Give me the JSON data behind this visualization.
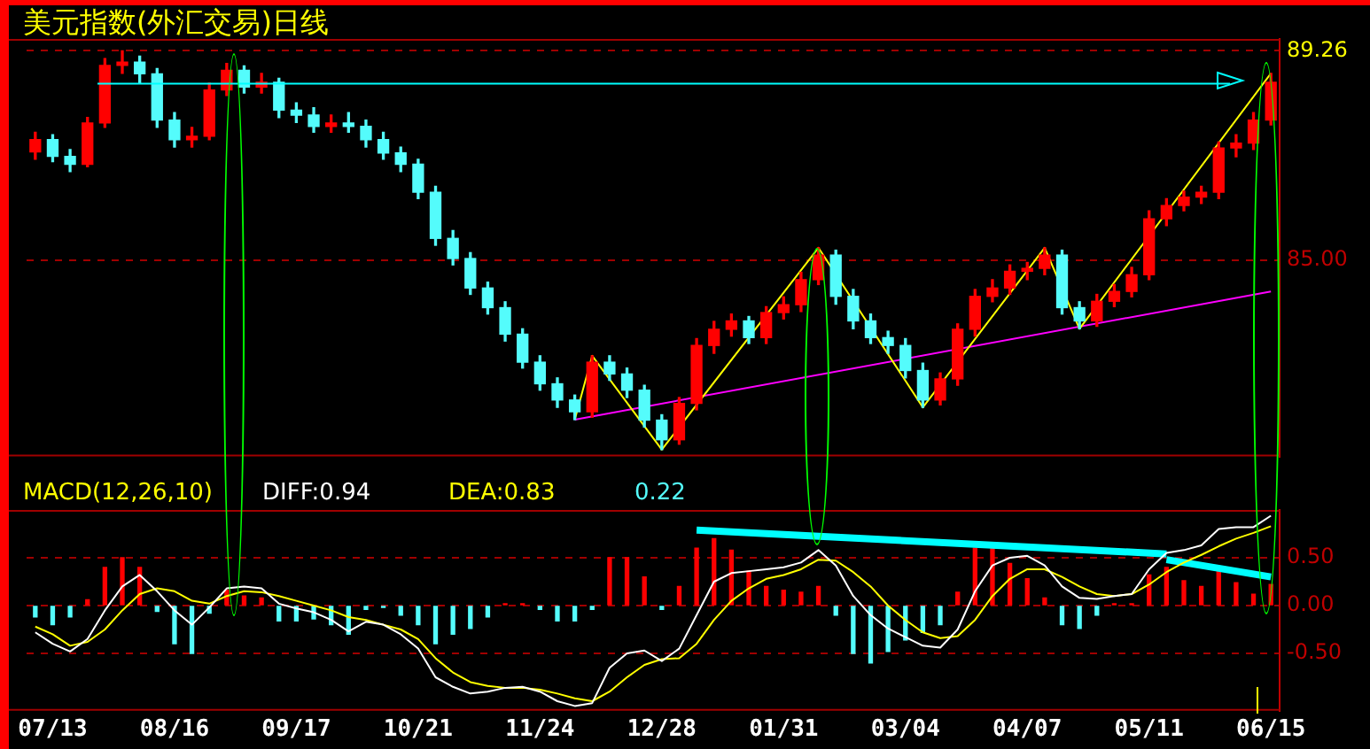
{
  "chart_data": [
    {
      "type": "candlestick",
      "title": "美元指数(外汇交易)日线",
      "categories": [
        null,
        null,
        null,
        null,
        null,
        null,
        null,
        null,
        null,
        null,
        null,
        null,
        null,
        null,
        null,
        null,
        null,
        null,
        null,
        null,
        null,
        null,
        null,
        null,
        null,
        null,
        null,
        null,
        null,
        null,
        null,
        null,
        null,
        null,
        null,
        null,
        null,
        null,
        null,
        null,
        null,
        null,
        null,
        null,
        null,
        null,
        null,
        null,
        null,
        null,
        null,
        null,
        null,
        null,
        null,
        null,
        null,
        null,
        null,
        null,
        null,
        null,
        null,
        null,
        null,
        null,
        null,
        null,
        null,
        null,
        null,
        null
      ],
      "ohlc": [
        [
          87.2,
          87.6,
          87.05,
          87.45
        ],
        [
          87.45,
          87.55,
          87.0,
          87.11
        ],
        [
          87.11,
          87.25,
          86.8,
          86.95
        ],
        [
          86.95,
          87.9,
          86.9,
          87.79
        ],
        [
          87.79,
          89.1,
          87.7,
          88.96
        ],
        [
          88.96,
          89.26,
          88.8,
          89.03
        ],
        [
          89.03,
          89.15,
          88.6,
          88.79
        ],
        [
          88.79,
          88.9,
          87.7,
          87.85
        ],
        [
          87.85,
          88.0,
          87.3,
          87.45
        ],
        [
          87.45,
          87.7,
          87.3,
          87.52
        ],
        [
          87.52,
          88.6,
          87.45,
          88.46
        ],
        [
          88.46,
          89.0,
          88.35,
          88.86
        ],
        [
          88.86,
          88.95,
          88.4,
          88.52
        ],
        [
          88.52,
          88.8,
          88.4,
          88.62
        ],
        [
          88.62,
          88.7,
          87.9,
          88.05
        ],
        [
          88.05,
          88.2,
          87.8,
          87.95
        ],
        [
          87.95,
          88.1,
          87.6,
          87.72
        ],
        [
          87.72,
          87.95,
          87.6,
          87.79
        ],
        [
          87.79,
          88.0,
          87.6,
          87.72
        ],
        [
          87.72,
          87.85,
          87.3,
          87.45
        ],
        [
          87.45,
          87.6,
          87.05,
          87.18
        ],
        [
          87.18,
          87.3,
          86.8,
          86.95
        ],
        [
          86.95,
          87.05,
          86.25,
          86.38
        ],
        [
          86.38,
          86.5,
          85.3,
          85.44
        ],
        [
          85.44,
          85.6,
          84.9,
          85.03
        ],
        [
          85.03,
          85.15,
          84.3,
          84.43
        ],
        [
          84.43,
          84.55,
          83.9,
          84.03
        ],
        [
          84.03,
          84.15,
          83.35,
          83.49
        ],
        [
          83.49,
          83.6,
          82.8,
          82.92
        ],
        [
          82.92,
          83.05,
          82.35,
          82.48
        ],
        [
          82.48,
          82.6,
          82.0,
          82.15
        ],
        [
          82.15,
          82.25,
          81.75,
          81.91
        ],
        [
          81.91,
          83.05,
          81.8,
          82.92
        ],
        [
          82.92,
          83.05,
          82.55,
          82.68
        ],
        [
          82.68,
          82.8,
          82.2,
          82.35
        ],
        [
          82.35,
          82.45,
          81.6,
          81.74
        ],
        [
          81.74,
          81.85,
          81.14,
          81.34
        ],
        [
          81.34,
          82.2,
          81.25,
          82.08
        ],
        [
          82.08,
          83.4,
          81.95,
          83.26
        ],
        [
          83.26,
          83.75,
          83.1,
          83.59
        ],
        [
          83.59,
          83.9,
          83.45,
          83.76
        ],
        [
          83.76,
          83.85,
          83.3,
          83.42
        ],
        [
          83.42,
          84.05,
          83.3,
          83.93
        ],
        [
          83.93,
          84.25,
          83.8,
          84.09
        ],
        [
          84.09,
          84.75,
          83.95,
          84.6
        ],
        [
          84.6,
          85.25,
          84.5,
          85.1
        ],
        [
          85.1,
          85.2,
          84.1,
          84.26
        ],
        [
          84.26,
          84.4,
          83.6,
          83.76
        ],
        [
          83.76,
          83.9,
          83.3,
          83.42
        ],
        [
          83.42,
          83.55,
          83.1,
          83.26
        ],
        [
          83.26,
          83.4,
          82.6,
          82.75
        ],
        [
          82.75,
          82.9,
          82.0,
          82.15
        ],
        [
          82.15,
          82.7,
          82.05,
          82.58
        ],
        [
          82.58,
          83.7,
          82.45,
          83.59
        ],
        [
          83.59,
          84.4,
          83.45,
          84.26
        ],
        [
          84.26,
          84.6,
          84.15,
          84.43
        ],
        [
          84.43,
          84.9,
          84.3,
          84.77
        ],
        [
          84.77,
          84.95,
          84.6,
          84.83
        ],
        [
          84.83,
          85.25,
          84.7,
          85.1
        ],
        [
          85.1,
          85.2,
          83.9,
          84.03
        ],
        [
          84.03,
          84.15,
          83.6,
          83.76
        ],
        [
          83.76,
          84.3,
          83.65,
          84.16
        ],
        [
          84.16,
          84.5,
          84.05,
          84.36
        ],
        [
          84.36,
          84.85,
          84.25,
          84.7
        ],
        [
          84.7,
          86.0,
          84.6,
          85.84
        ],
        [
          85.84,
          86.25,
          85.7,
          86.11
        ],
        [
          86.11,
          86.4,
          86.0,
          86.28
        ],
        [
          86.28,
          86.5,
          86.15,
          86.38
        ],
        [
          86.38,
          87.4,
          86.25,
          87.28
        ],
        [
          87.28,
          87.55,
          87.1,
          87.38
        ],
        [
          87.38,
          88.0,
          87.25,
          87.85
        ],
        [
          87.85,
          88.8,
          87.75,
          88.62
        ]
      ],
      "colors": [
        "#ff0000",
        "#54fcfc",
        "#54fcfc",
        "#ff0000",
        "#ff0000",
        "#ff0000",
        "#54fcfc",
        "#54fcfc",
        "#54fcfc",
        "#ff0000",
        "#ff0000",
        "#ff0000",
        "#54fcfc",
        "#ff0000",
        "#54fcfc",
        "#54fcfc",
        "#54fcfc",
        "#ff0000",
        "#54fcfc",
        "#54fcfc",
        "#54fcfc",
        "#54fcfc",
        "#54fcfc",
        "#54fcfc",
        "#54fcfc",
        "#54fcfc",
        "#54fcfc",
        "#54fcfc",
        "#54fcfc",
        "#54fcfc",
        "#54fcfc",
        "#54fcfc",
        "#ff0000",
        "#54fcfc",
        "#54fcfc",
        "#54fcfc",
        "#54fcfc",
        "#ff0000",
        "#ff0000",
        "#ff0000",
        "#ff0000",
        "#54fcfc",
        "#ff0000",
        "#ff0000",
        "#ff0000",
        "#ff0000",
        "#54fcfc",
        "#54fcfc",
        "#54fcfc",
        "#54fcfc",
        "#54fcfc",
        "#54fcfc",
        "#ff0000",
        "#ff0000",
        "#ff0000",
        "#ff0000",
        "#ff0000",
        "#ff0000",
        "#ff0000",
        "#54fcfc",
        "#54fcfc",
        "#ff0000",
        "#ff0000",
        "#ff0000",
        "#ff0000",
        "#ff0000",
        "#ff0000",
        "#ff0000",
        "#ff0000",
        "#ff0000",
        "#ff0000",
        "#ff0000"
      ],
      "series": [
        {
          "type": "line",
          "color": "#ffff00",
          "values": [
            null,
            null,
            null,
            null,
            null,
            null,
            null,
            null,
            null,
            null,
            null,
            null,
            null,
            null,
            null,
            null,
            null,
            null,
            null,
            null,
            null,
            null,
            null,
            null,
            null,
            null,
            null,
            null,
            null,
            null,
            null,
            81.75,
            83.05,
            null,
            null,
            null,
            81.14,
            null,
            null,
            null,
            null,
            null,
            null,
            null,
            null,
            85.25,
            null,
            null,
            null,
            null,
            null,
            82.0,
            null,
            null,
            null,
            null,
            null,
            null,
            85.25,
            null,
            83.6,
            null,
            null,
            null,
            null,
            null,
            null,
            null,
            null,
            null,
            null,
            88.8
          ]
        },
        {
          "type": "line",
          "color": "#ff00ff",
          "values": [
            null,
            null,
            null,
            null,
            null,
            null,
            null,
            null,
            null,
            null,
            null,
            null,
            null,
            null,
            null,
            null,
            null,
            null,
            null,
            null,
            null,
            null,
            null,
            null,
            null,
            null,
            null,
            null,
            null,
            null,
            null,
            81.75,
            null,
            null,
            null,
            null,
            null,
            null,
            null,
            null,
            null,
            null,
            null,
            null,
            null,
            null,
            null,
            null,
            null,
            null,
            null,
            null,
            null,
            null,
            null,
            null,
            null,
            null,
            null,
            null,
            null,
            null,
            null,
            null,
            null,
            null,
            null,
            null,
            null,
            null,
            null,
            84.36
          ]
        }
      ],
      "ref_lines": [
        {
          "axis": "y",
          "value": 88.59,
          "color": "#00ffff"
        }
      ],
      "ylim": [
        81.0,
        89.5
      ],
      "yticks": [
        {
          "value": 85,
          "label": "85.00"
        },
        {
          "value": 89.26,
          "label": "89.26"
        }
      ],
      "grid": "y",
      "tick_labels": "y",
      "marker": "none"
    },
    {
      "type": "bar",
      "title": "MACD(12,26,10)",
      "categories": [
        null,
        "07/13",
        null,
        null,
        null,
        null,
        null,
        null,
        "08/16",
        null,
        null,
        null,
        null,
        null,
        null,
        "09/17",
        null,
        null,
        null,
        null,
        null,
        null,
        "10/21",
        null,
        null,
        null,
        null,
        null,
        null,
        "11/24",
        null,
        null,
        null,
        null,
        null,
        null,
        "12/28",
        null,
        null,
        null,
        null,
        null,
        null,
        "01/31",
        null,
        null,
        null,
        null,
        null,
        null,
        "03/04",
        null,
        null,
        null,
        null,
        null,
        null,
        "04/07",
        null,
        null,
        null,
        null,
        null,
        null,
        "05/11",
        null,
        null,
        null,
        null,
        null,
        null,
        "06/15"
      ],
      "series": [
        {
          "type": "line",
          "name": "DIFF:0.94",
          "color": "#ffffff",
          "values": [
            -0.28,
            -0.4,
            -0.48,
            -0.35,
            -0.05,
            0.2,
            0.32,
            0.15,
            -0.05,
            -0.2,
            -0.02,
            0.18,
            0.2,
            0.18,
            0.02,
            -0.03,
            -0.07,
            -0.15,
            -0.27,
            -0.17,
            -0.2,
            -0.3,
            -0.45,
            -0.75,
            -0.85,
            -0.92,
            -0.9,
            -0.86,
            -0.85,
            -0.9,
            -1.0,
            -1.05,
            -1.02,
            -0.65,
            -0.5,
            -0.47,
            -0.58,
            -0.45,
            -0.1,
            0.25,
            0.34,
            0.36,
            0.38,
            0.4,
            0.45,
            0.58,
            0.42,
            0.1,
            -0.1,
            -0.24,
            -0.33,
            -0.42,
            -0.44,
            -0.25,
            0.15,
            0.42,
            0.5,
            0.52,
            0.42,
            0.2,
            0.08,
            0.07,
            0.1,
            0.12,
            0.38,
            0.55,
            0.58,
            0.63,
            0.8,
            0.82,
            0.82,
            0.94
          ]
        },
        {
          "type": "line",
          "name": "DEA:0.83",
          "color": "#ffff00",
          "values": [
            -0.22,
            -0.3,
            -0.42,
            -0.38,
            -0.25,
            -0.05,
            0.12,
            0.18,
            0.15,
            0.05,
            0.02,
            0.1,
            0.15,
            0.14,
            0.1,
            0.05,
            0.0,
            -0.05,
            -0.12,
            -0.15,
            -0.2,
            -0.25,
            -0.35,
            -0.55,
            -0.7,
            -0.8,
            -0.84,
            -0.86,
            -0.86,
            -0.88,
            -0.92,
            -0.97,
            -1.0,
            -0.9,
            -0.75,
            -0.62,
            -0.56,
            -0.55,
            -0.4,
            -0.15,
            0.05,
            0.18,
            0.28,
            0.32,
            0.38,
            0.48,
            0.47,
            0.35,
            0.2,
            0.0,
            -0.15,
            -0.28,
            -0.34,
            -0.32,
            -0.15,
            0.1,
            0.28,
            0.38,
            0.38,
            0.3,
            0.2,
            0.12,
            0.1,
            0.12,
            0.22,
            0.35,
            0.45,
            0.53,
            0.62,
            0.7,
            0.76,
            0.83
          ]
        },
        {
          "type": "bar",
          "name": "0.22",
          "color": "#54fcfc",
          "values": [
            -0.12,
            -0.2,
            -0.12,
            0.06,
            0.4,
            0.5,
            0.4,
            -0.06,
            -0.4,
            -0.5,
            -0.08,
            0.16,
            0.1,
            0.08,
            -0.16,
            -0.16,
            -0.14,
            -0.2,
            -0.3,
            -0.04,
            -0.02,
            -0.1,
            -0.2,
            -0.4,
            -0.3,
            -0.24,
            -0.12,
            0.02,
            0.02,
            -0.04,
            -0.16,
            -0.16,
            -0.04,
            0.5,
            0.5,
            0.3,
            -0.04,
            0.2,
            0.6,
            0.7,
            0.58,
            0.36,
            0.2,
            0.16,
            0.14,
            0.2,
            -0.1,
            -0.5,
            -0.6,
            -0.48,
            -0.36,
            -0.28,
            -0.2,
            0.14,
            0.6,
            0.64,
            0.44,
            0.28,
            0.08,
            -0.2,
            -0.24,
            -0.1,
            0.02,
            0.02,
            0.32,
            0.4,
            0.26,
            0.2,
            0.36,
            0.24,
            0.12,
            0.22
          ],
          "colors": [
            "#54fcfc",
            "#54fcfc",
            "#54fcfc",
            "#ff0000",
            "#ff0000",
            "#ff0000",
            "#ff0000",
            "#54fcfc",
            "#54fcfc",
            "#54fcfc",
            "#54fcfc",
            "#ff0000",
            "#ff0000",
            "#ff0000",
            "#54fcfc",
            "#54fcfc",
            "#54fcfc",
            "#54fcfc",
            "#54fcfc",
            "#54fcfc",
            "#54fcfc",
            "#54fcfc",
            "#54fcfc",
            "#54fcfc",
            "#54fcfc",
            "#54fcfc",
            "#54fcfc",
            "#ff0000",
            "#ff0000",
            "#54fcfc",
            "#54fcfc",
            "#54fcfc",
            "#54fcfc",
            "#ff0000",
            "#ff0000",
            "#ff0000",
            "#54fcfc",
            "#ff0000",
            "#ff0000",
            "#ff0000",
            "#ff0000",
            "#ff0000",
            "#ff0000",
            "#ff0000",
            "#ff0000",
            "#ff0000",
            "#54fcfc",
            "#54fcfc",
            "#54fcfc",
            "#54fcfc",
            "#54fcfc",
            "#54fcfc",
            "#54fcfc",
            "#ff0000",
            "#ff0000",
            "#ff0000",
            "#ff0000",
            "#ff0000",
            "#ff0000",
            "#54fcfc",
            "#54fcfc",
            "#54fcfc",
            "#ff0000",
            "#ff0000",
            "#ff0000",
            "#ff0000",
            "#ff0000",
            "#ff0000",
            "#ff0000",
            "#ff0000",
            "#ff0000",
            "#ff0000"
          ]
        },
        {
          "type": "line",
          "color": "#00ffff",
          "values": [
            null,
            null,
            null,
            null,
            null,
            null,
            null,
            null,
            null,
            null,
            null,
            null,
            null,
            null,
            null,
            null,
            null,
            null,
            null,
            null,
            null,
            null,
            null,
            null,
            null,
            null,
            null,
            null,
            null,
            null,
            null,
            null,
            null,
            null,
            null,
            null,
            null,
            null,
            0.79,
            null,
            null,
            null,
            null,
            null,
            null,
            null,
            null,
            null,
            null,
            null,
            null,
            null,
            null,
            null,
            null,
            null,
            null,
            null,
            null,
            null,
            null,
            null,
            null,
            null,
            null,
            0.54,
            null,
            null,
            null,
            null,
            null,
            null
          ]
        },
        {
          "type": "line",
          "color": "#00ffff",
          "values": [
            null,
            null,
            null,
            null,
            null,
            null,
            null,
            null,
            null,
            null,
            null,
            null,
            null,
            null,
            null,
            null,
            null,
            null,
            null,
            null,
            null,
            null,
            null,
            null,
            null,
            null,
            null,
            null,
            null,
            null,
            null,
            null,
            null,
            null,
            null,
            null,
            null,
            null,
            null,
            null,
            null,
            null,
            null,
            null,
            null,
            null,
            null,
            null,
            null,
            null,
            null,
            null,
            null,
            null,
            null,
            null,
            null,
            null,
            null,
            null,
            null,
            null,
            null,
            null,
            null,
            0.48,
            null,
            null,
            null,
            null,
            null,
            0.3
          ]
        }
      ],
      "ylim": [
        -1.1,
        1.0
      ],
      "yticks": [
        {
          "value": 0.5,
          "label": "0.50"
        },
        {
          "value": 0,
          "label": "0.00"
        },
        {
          "value": -0.5,
          "label": "-0.50"
        }
      ],
      "grid": "y",
      "legend": "top left",
      "marker": "none"
    }
  ]
}
